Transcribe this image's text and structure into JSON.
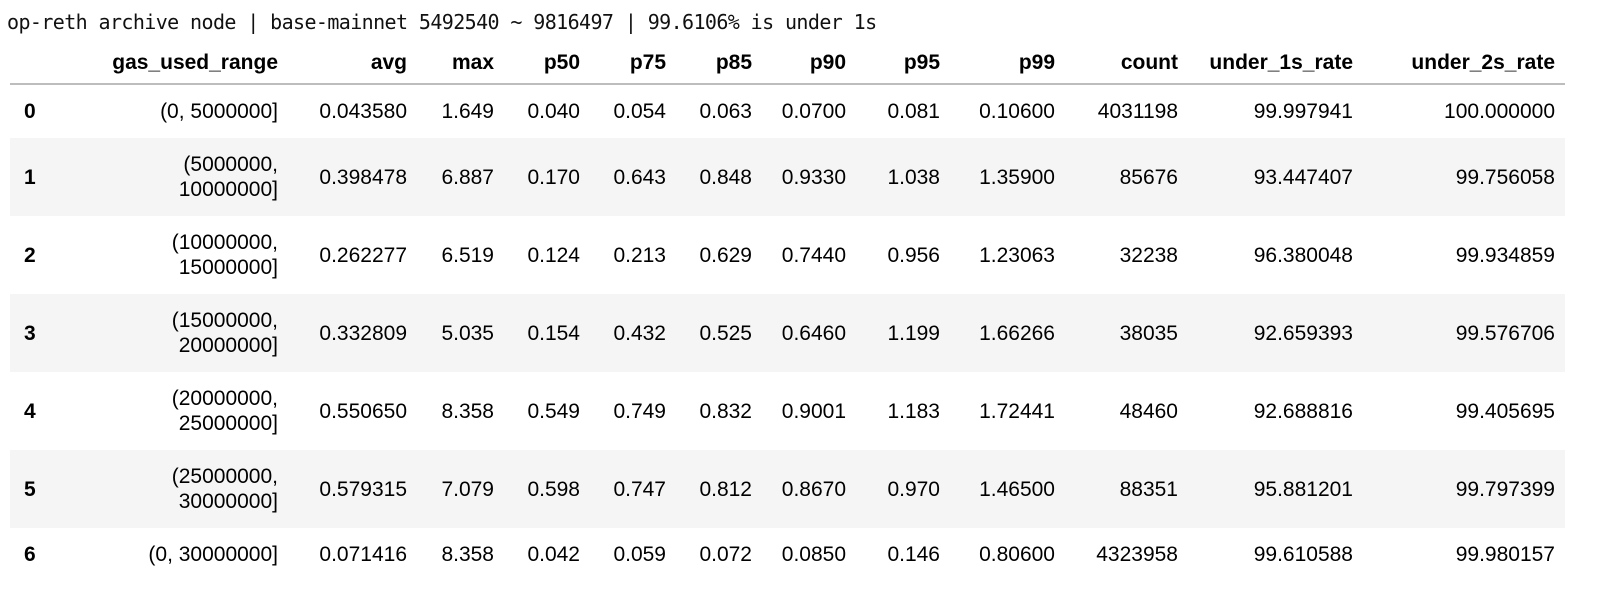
{
  "title": "op-reth archive node | base-mainnet 5492540 ~ 9816497 | 99.6106% is under 1s",
  "table": {
    "columns": [
      "",
      "gas_used_range",
      "avg",
      "max",
      "p50",
      "p75",
      "p85",
      "p90",
      "p95",
      "p99",
      "count",
      "under_1s_rate",
      "under_2s_rate"
    ],
    "rows": [
      [
        "0",
        "(0, 5000000]",
        "0.043580",
        "1.649",
        "0.040",
        "0.054",
        "0.063",
        "0.0700",
        "0.081",
        "0.10600",
        "4031198",
        "99.997941",
        "100.000000"
      ],
      [
        "1",
        "(5000000, 10000000]",
        "0.398478",
        "6.887",
        "0.170",
        "0.643",
        "0.848",
        "0.9330",
        "1.038",
        "1.35900",
        "85676",
        "93.447407",
        "99.756058"
      ],
      [
        "2",
        "(10000000, 15000000]",
        "0.262277",
        "6.519",
        "0.124",
        "0.213",
        "0.629",
        "0.7440",
        "0.956",
        "1.23063",
        "32238",
        "96.380048",
        "99.934859"
      ],
      [
        "3",
        "(15000000, 20000000]",
        "0.332809",
        "5.035",
        "0.154",
        "0.432",
        "0.525",
        "0.6460",
        "1.199",
        "1.66266",
        "38035",
        "92.659393",
        "99.576706"
      ],
      [
        "4",
        "(20000000, 25000000]",
        "0.550650",
        "8.358",
        "0.549",
        "0.749",
        "0.832",
        "0.9001",
        "1.183",
        "1.72441",
        "48460",
        "92.688816",
        "99.405695"
      ],
      [
        "5",
        "(25000000, 30000000]",
        "0.579315",
        "7.079",
        "0.598",
        "0.747",
        "0.812",
        "0.8670",
        "0.970",
        "1.46500",
        "88351",
        "95.881201",
        "99.797399"
      ],
      [
        "6",
        "(0, 30000000]",
        "0.071416",
        "8.358",
        "0.042",
        "0.059",
        "0.072",
        "0.0850",
        "0.146",
        "0.80600",
        "4323958",
        "99.610588",
        "99.980157"
      ]
    ]
  }
}
